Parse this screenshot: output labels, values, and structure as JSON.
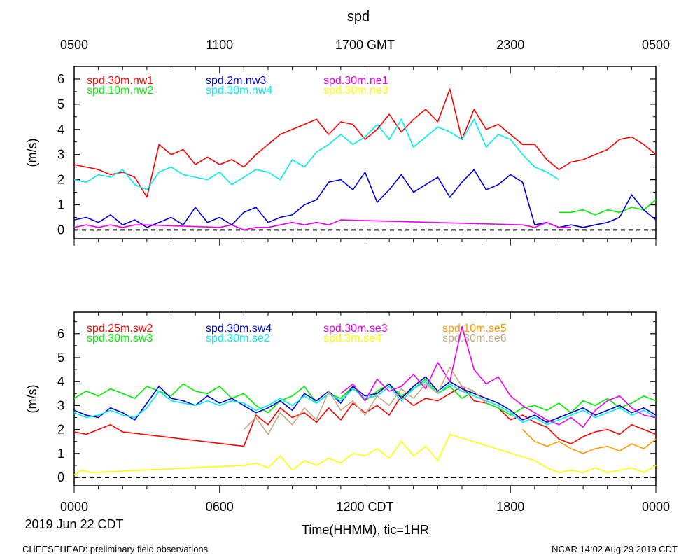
{
  "figure": {
    "title": "spd",
    "footer_left": "CHEESEHEAD: preliminary field observations",
    "footer_right": "NCAR 14:02 Aug 29 2019 CDT",
    "date_label": "2019 Jun 22 CDT",
    "x_axis_label": "Time(HHMM), tic=1HR",
    "top_ticks": [
      "0500",
      "1100",
      "1700 GMT",
      "2300",
      "0500"
    ],
    "bottom_ticks": [
      "0000",
      "0600",
      "1200 CDT",
      "1800",
      "0000"
    ]
  },
  "chart_data": [
    {
      "type": "line",
      "panel": "top",
      "ylabel": "(m/s)",
      "xlim": [
        0,
        24
      ],
      "ylim": [
        -0.35,
        6.5
      ],
      "yticks": [
        "0",
        "1",
        "2",
        "3",
        "4",
        "5",
        "6"
      ],
      "baseline": 0,
      "series": [
        {
          "name": "spd.30m.nw1",
          "color": "#ff0000",
          "x": [
            0,
            0.5,
            1,
            1.5,
            2,
            2.5,
            3,
            3.5,
            4,
            4.5,
            5,
            5.5,
            6,
            6.5,
            7,
            7.5,
            8,
            8.5,
            9,
            9.5,
            10,
            10.5,
            11,
            11.5,
            12,
            12.5,
            13,
            13.5,
            14,
            14.5,
            15,
            15.5,
            16,
            16.5,
            17,
            17.5,
            18,
            18.5,
            19,
            19.5,
            20,
            20.5,
            21,
            21.5,
            22,
            22.5,
            23,
            23.5,
            24
          ],
          "values": [
            2.6,
            2.5,
            2.4,
            2.2,
            2.3,
            2.1,
            1.3,
            3.4,
            3.0,
            3.2,
            2.6,
            2.9,
            2.6,
            2.8,
            2.5,
            3.0,
            3.4,
            3.8,
            4.0,
            4.2,
            4.4,
            3.8,
            4.3,
            4.2,
            3.6,
            4.0,
            4.6,
            3.9,
            4.4,
            4.8,
            4.3,
            5.6,
            3.6,
            4.8,
            4.0,
            4.2,
            3.8,
            3.4,
            3.4,
            2.8,
            2.4,
            2.7,
            2.8,
            3.0,
            3.2,
            3.6,
            3.7,
            3.4,
            3.0
          ]
        },
        {
          "name": "spd.10m.nw2",
          "color": "#00ee00",
          "x": [
            20,
            20.5,
            21,
            21.5,
            22,
            22.5,
            23,
            23.5,
            24
          ],
          "values": [
            0.7,
            0.7,
            0.8,
            0.6,
            0.8,
            0.7,
            0.9,
            0.8,
            1.2
          ]
        },
        {
          "name": "spd.2m.nw3",
          "color": "#0000dd",
          "x": [
            0,
            0.5,
            1,
            1.5,
            2,
            2.5,
            3,
            3.5,
            4,
            4.5,
            5,
            5.5,
            6,
            6.5,
            7,
            7.5,
            8,
            8.5,
            9,
            9.5,
            10,
            10.5,
            11,
            11.5,
            12,
            12.5,
            13,
            13.5,
            14,
            14.5,
            15,
            15.5,
            16,
            16.5,
            17,
            17.5,
            18,
            18.5,
            19,
            19.5,
            20,
            20.5,
            21,
            21.5,
            22,
            22.5,
            23,
            23.5,
            24
          ],
          "values": [
            0.4,
            0.5,
            0.3,
            0.6,
            0.2,
            0.4,
            0.1,
            0.3,
            0.5,
            0.2,
            0.9,
            0.3,
            0.5,
            0.2,
            0.7,
            0.9,
            0.3,
            0.5,
            0.6,
            1.0,
            1.2,
            1.9,
            2.0,
            1.6,
            2.3,
            1.1,
            1.6,
            2.2,
            1.5,
            1.8,
            2.1,
            1.3,
            1.9,
            2.4,
            1.6,
            1.8,
            2.2,
            1.9,
            0.2,
            0.3,
            0.1,
            0.2,
            0.1,
            0.2,
            0.3,
            0.5,
            1.4,
            0.8,
            0.4
          ]
        },
        {
          "name": "spd.30m.nw4",
          "color": "#00eeee",
          "x": [
            0,
            0.5,
            1,
            1.5,
            2,
            2.5,
            3,
            3.5,
            4,
            4.5,
            5,
            5.5,
            6,
            6.5,
            7,
            7.5,
            8,
            8.5,
            9,
            9.5,
            10,
            10.5,
            11,
            11.5,
            12,
            12.5,
            13,
            13.5,
            14,
            14.5,
            15,
            15.5,
            16,
            16.5,
            17,
            17.5,
            18,
            18.5,
            19,
            19.5,
            20
          ],
          "values": [
            2.0,
            1.9,
            2.2,
            2.1,
            2.4,
            1.8,
            1.6,
            2.3,
            2.5,
            2.2,
            2.1,
            2.0,
            2.3,
            1.8,
            2.1,
            2.4,
            2.3,
            2.0,
            2.8,
            2.5,
            3.1,
            3.4,
            3.8,
            3.4,
            3.7,
            4.2,
            3.6,
            4.4,
            3.3,
            3.7,
            4.1,
            3.9,
            3.6,
            4.4,
            3.3,
            3.8,
            3.6,
            3.0,
            2.5,
            2.3,
            2.0
          ]
        },
        {
          "name": "spd.30m.ne1",
          "color": "#ee00ee",
          "x": [
            0,
            0.5,
            1,
            1.5,
            2,
            2.5,
            3,
            6,
            6.5,
            7,
            7.5,
            8,
            8.5,
            9,
            9.5,
            10,
            10.5,
            11,
            18.5,
            19,
            19.5,
            20,
            20.5
          ],
          "values": [
            0.1,
            0.2,
            0.1,
            0.2,
            0.1,
            0.2,
            0.2,
            0.1,
            0.2,
            0.0,
            0.1,
            0.1,
            0.2,
            0.3,
            0.2,
            0.3,
            0.2,
            0.4,
            0.2,
            0.1,
            0.3,
            0.1,
            0.1
          ]
        },
        {
          "name": "spd.30m.ne3",
          "color": "#ffff00",
          "x": [],
          "values": []
        }
      ]
    },
    {
      "type": "line",
      "panel": "bottom",
      "ylabel": "(m/s)",
      "xlim": [
        0,
        24
      ],
      "ylim": [
        -0.35,
        6.9
      ],
      "yticks": [
        "0",
        "1",
        "2",
        "3",
        "4",
        "5",
        "6"
      ],
      "baseline": 0,
      "series": [
        {
          "name": "spd.25m.sw2",
          "color": "#ff0000",
          "x": [
            0,
            0.5,
            1,
            1.5,
            2,
            7,
            7.5,
            8,
            8.5,
            9,
            9.5,
            10,
            10.5,
            11,
            11.5,
            12,
            12.5,
            13,
            13.5,
            14,
            14.5,
            15,
            15.5,
            16,
            16.5,
            17,
            17.5,
            18,
            18.5,
            19,
            19.5,
            20,
            20.5,
            21,
            21.5,
            22,
            22.5,
            23,
            23.5,
            24
          ],
          "values": [
            1.9,
            1.8,
            2.0,
            2.2,
            1.9,
            1.3,
            2.6,
            2.2,
            2.9,
            2.5,
            2.7,
            2.3,
            2.9,
            2.4,
            3.1,
            2.7,
            3.0,
            2.6,
            3.4,
            3.0,
            3.3,
            3.2,
            3.5,
            3.8,
            3.2,
            3.1,
            2.9,
            2.4,
            2.6,
            2.3,
            2.1,
            1.6,
            1.4,
            1.7,
            1.9,
            2.0,
            1.8,
            2.2,
            2.0,
            1.8
          ]
        },
        {
          "name": "spd.30m.sw3",
          "color": "#00ee00",
          "x": [
            0,
            0.5,
            1,
            1.5,
            2,
            2.5,
            3,
            3.5,
            4,
            4.5,
            5,
            5.5,
            6,
            6.5,
            7,
            7.5,
            8,
            8.5,
            9,
            9.5,
            10,
            10.5,
            11,
            11.5,
            12,
            12.5,
            13,
            13.5,
            14,
            14.5,
            15,
            15.5,
            16,
            16.5,
            17,
            17.5,
            18,
            18.5,
            19,
            19.5,
            20,
            20.5,
            21,
            21.5,
            22,
            22.5,
            23,
            23.5,
            24
          ],
          "values": [
            3.3,
            3.6,
            3.4,
            3.7,
            3.5,
            3.3,
            3.8,
            3.6,
            3.4,
            3.9,
            3.6,
            3.5,
            3.8,
            3.3,
            3.5,
            3.0,
            2.7,
            3.2,
            3.4,
            3.8,
            3.1,
            3.5,
            3.3,
            3.8,
            3.2,
            3.6,
            3.9,
            3.4,
            3.7,
            4.1,
            3.5,
            3.8,
            3.3,
            3.6,
            3.1,
            2.9,
            2.6,
            2.9,
            3.0,
            2.8,
            3.1,
            2.7,
            3.2,
            3.0,
            3.3,
            2.9,
            3.1,
            3.4,
            3.2
          ]
        },
        {
          "name": "spd.30m.sw4",
          "color": "#0000dd",
          "x": [
            0,
            0.5,
            1,
            1.5,
            2,
            2.5,
            3,
            3.5,
            4,
            4.5,
            5,
            5.5,
            6,
            6.5,
            7,
            7.5,
            8,
            8.5,
            9,
            9.5,
            10,
            10.5,
            11,
            11.5,
            12,
            12.5,
            13,
            13.5,
            14,
            14.5,
            15,
            15.5,
            16,
            16.5,
            17,
            17.5,
            18,
            18.5,
            19,
            19.5,
            20,
            20.5,
            21,
            21.5,
            22,
            22.5,
            23,
            23.5,
            24
          ],
          "values": [
            2.8,
            2.6,
            2.5,
            2.9,
            2.7,
            2.4,
            3.1,
            3.8,
            3.3,
            3.2,
            3.0,
            3.4,
            3.1,
            3.3,
            3.0,
            2.7,
            2.9,
            3.2,
            2.8,
            3.5,
            3.2,
            3.6,
            3.1,
            3.8,
            3.4,
            3.5,
            3.9,
            3.3,
            3.8,
            4.2,
            3.6,
            4.0,
            3.7,
            3.5,
            3.3,
            3.1,
            2.8,
            2.4,
            2.6,
            2.3,
            2.5,
            2.7,
            2.9,
            2.6,
            2.8,
            3.0,
            2.7,
            2.9,
            2.6
          ]
        },
        {
          "name": "spd.30m.se2",
          "color": "#00eeee",
          "x": [
            0,
            0.5,
            1,
            1.5,
            2,
            2.5,
            3,
            3.5,
            4,
            4.5,
            5,
            5.5,
            6,
            6.5,
            7,
            7.5,
            8,
            8.5,
            9,
            9.5,
            10,
            10.5,
            11,
            11.5,
            12,
            12.5,
            13,
            13.5,
            14,
            14.5,
            15,
            15.5,
            16,
            16.5,
            17,
            17.5,
            18,
            18.5,
            19,
            19.5,
            20,
            20.5,
            21,
            21.5,
            22,
            22.5,
            23,
            23.5,
            24
          ],
          "values": [
            2.7,
            2.5,
            2.6,
            2.8,
            2.6,
            2.5,
            2.9,
            3.6,
            3.2,
            3.1,
            3.0,
            3.2,
            3.0,
            3.2,
            3.1,
            2.8,
            3.0,
            3.3,
            3.0,
            3.4,
            3.1,
            3.5,
            3.2,
            3.7,
            3.3,
            3.4,
            3.8,
            3.2,
            3.7,
            4.0,
            3.5,
            3.9,
            3.6,
            3.4,
            3.2,
            3.0,
            2.7,
            2.3,
            2.5,
            2.2,
            2.4,
            2.6,
            2.8,
            2.5,
            2.7,
            2.9,
            2.6,
            2.8,
            2.5
          ]
        },
        {
          "name": "spd.30m.se3",
          "color": "#ee00ee",
          "x": [
            11,
            11.5,
            12,
            12.5,
            13,
            13.5,
            14,
            14.5,
            15,
            15.5,
            16,
            16.5,
            17,
            17.5,
            18,
            18.5,
            19,
            19.5,
            20,
            20.5,
            21,
            21.5,
            22,
            22.5,
            23,
            23.5,
            24
          ],
          "values": [
            3.5,
            3.9,
            3.2,
            4.1,
            3.6,
            3.8,
            4.3,
            3.7,
            4.8,
            4.0,
            6.3,
            4.5,
            3.9,
            4.2,
            3.4,
            3.0,
            2.7,
            2.4,
            2.2,
            2.5,
            2.1,
            2.8,
            3.2,
            3.4,
            2.9,
            2.6,
            2.5
          ]
        },
        {
          "name": "spd.3m.se4",
          "color": "#ffff00",
          "x": [
            0,
            0.3,
            0.7,
            7,
            7.5,
            8,
            8.5,
            9,
            9.5,
            10,
            10.5,
            11,
            11.5,
            12,
            12.5,
            13,
            13.5,
            14,
            14.5,
            15,
            15.5,
            19,
            19.5,
            20,
            20.5,
            21,
            21.5,
            22,
            22.5,
            23,
            23.5,
            24
          ],
          "values": [
            0.1,
            0.3,
            0.2,
            0.5,
            0.6,
            0.4,
            0.9,
            0.3,
            0.7,
            0.5,
            0.8,
            0.6,
            1.0,
            0.9,
            1.2,
            0.8,
            1.5,
            0.9,
            1.3,
            0.7,
            1.8,
            0.7,
            0.4,
            0.2,
            0.3,
            0.2,
            0.4,
            0.2,
            0.3,
            0.4,
            0.2,
            0.5
          ]
        },
        {
          "name": "spd.10m.se5",
          "color": "#ff9900",
          "x": [
            18.5,
            19,
            19.5,
            20,
            20.5,
            21,
            21.5,
            22,
            22.5,
            23,
            23.5,
            24
          ],
          "values": [
            2.0,
            1.5,
            1.3,
            1.5,
            1.2,
            1.0,
            1.2,
            1.3,
            1.1,
            1.4,
            1.2,
            1.6
          ]
        },
        {
          "name": "spd.30m.se6",
          "color": "#c8a882",
          "x": [
            7,
            7.5,
            8,
            8.5,
            9,
            9.5,
            10,
            10.5,
            11,
            11.5,
            12,
            12.5,
            13,
            13.5,
            14,
            14.5,
            15,
            15.5,
            16,
            16.5,
            17
          ],
          "values": [
            2.0,
            2.5,
            1.8,
            2.7,
            2.2,
            2.9,
            2.4,
            3.6,
            2.8,
            3.2,
            2.6,
            3.4,
            3.0,
            3.7,
            3.3,
            3.9,
            3.5,
            4.6,
            3.8,
            3.6,
            3.1
          ]
        }
      ]
    }
  ]
}
